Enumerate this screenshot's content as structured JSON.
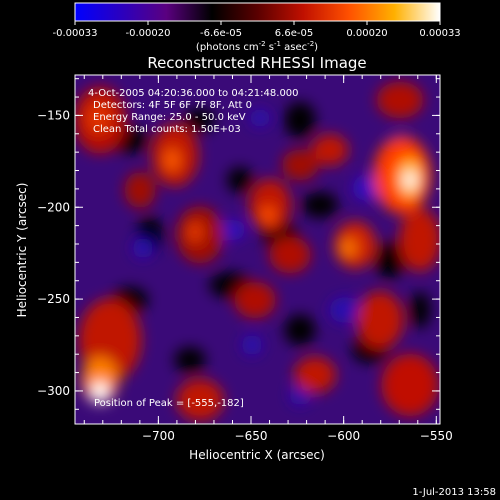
{
  "colorbar": {
    "ticks": [
      "-0.00033",
      "-0.00020",
      "-6.6e-05",
      "6.6e-05",
      "0.00020",
      "0.00033"
    ],
    "unit_main": "(photons cm",
    "unit_sup1": "-2",
    "unit_s": " s",
    "unit_sup2": "-1",
    "unit_asec": " asec",
    "unit_sup3": "-2",
    "unit_close": ")",
    "stops": [
      "#0000ff",
      "#2a00c0",
      "#5a0080",
      "#000000",
      "#5a0000",
      "#c01000",
      "#ff5000",
      "#ffb000",
      "#ffffff"
    ]
  },
  "chart_data": {
    "type": "heatmap",
    "title": "Reconstructed RHESSI Image",
    "xlabel": "Heliocentric X (arcsec)",
    "ylabel": "Heliocentric Y (arcsec)",
    "xlim": [
      -745,
      -548
    ],
    "ylim": [
      -318,
      -128
    ],
    "xticks": [
      -700,
      -650,
      -600,
      -550
    ],
    "xtick_labels": [
      "−700",
      "−650",
      "−600",
      "−550"
    ],
    "yticks": [
      -150,
      -200,
      -250,
      -300
    ],
    "ytick_labels": [
      "−150",
      "−200",
      "−250",
      "−300"
    ],
    "annotations": [
      "4-Oct-2005 04:20:36.000 to 04:21:48.000",
      "Detectors: 4F 5F 6F 7F 8F, Att 0",
      "Energy Range: 25.0 - 50.0 keV",
      "Clean    Total counts: 1.50E+03"
    ],
    "peak_label": "Position of Peak = [-555,-182]",
    "peak": [
      -555,
      -182
    ]
  },
  "footer": {
    "timestamp": "1-Jul-2013 13:58"
  }
}
